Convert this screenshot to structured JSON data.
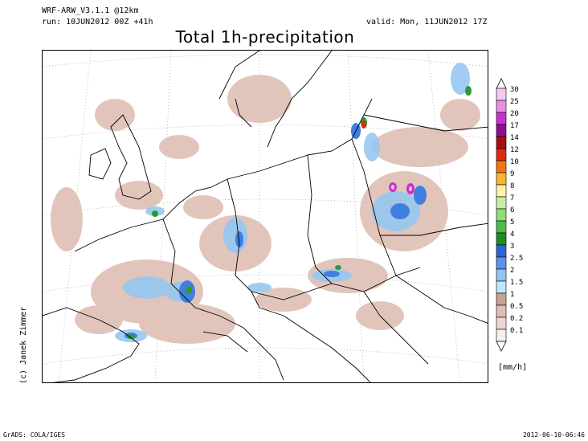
{
  "header": {
    "model": "WRF-ARW_V3.1.1 @12km",
    "run": "run: 10JUN2012 00Z +41h",
    "valid": "valid: Mon, 11JUN2012 17Z",
    "title": "Total 1h-precipitation"
  },
  "copyright": "(c) Janek Zimmer",
  "colorbar": {
    "unit": "[mm/h]",
    "levels": [
      {
        "label": "30",
        "color": "#f5c8f2"
      },
      {
        "label": "25",
        "color": "#ea8fe4"
      },
      {
        "label": "20",
        "color": "#cc2fd0"
      },
      {
        "label": "17",
        "color": "#8e0f94"
      },
      {
        "label": "14",
        "color": "#a50f0f"
      },
      {
        "label": "12",
        "color": "#e02a12"
      },
      {
        "label": "10",
        "color": "#f2760e"
      },
      {
        "label": "9",
        "color": "#f7b52f"
      },
      {
        "label": "8",
        "color": "#fbf2a8"
      },
      {
        "label": "7",
        "color": "#c7eea8"
      },
      {
        "label": "6",
        "color": "#8fdc7a"
      },
      {
        "label": "5",
        "color": "#4cbc48"
      },
      {
        "label": "4",
        "color": "#1c8c24"
      },
      {
        "label": "3",
        "color": "#2f64d6"
      },
      {
        "label": "2.5",
        "color": "#5b92ea"
      },
      {
        "label": "2",
        "color": "#8fc3f3"
      },
      {
        "label": "1.5",
        "color": "#bfe4fb"
      },
      {
        "label": "1",
        "color": "#c9a291"
      },
      {
        "label": "0.5",
        "color": "#ddbeb2"
      },
      {
        "label": "0.2",
        "color": "#ecd8d0"
      },
      {
        "label": "0.1",
        "color": "#f8eeea"
      }
    ]
  },
  "colors": {
    "land_outline": "#000000",
    "grid_line": "#888888",
    "light_rain": "#d9b7aa",
    "moderate_rain": "#8ec4ef",
    "heavy_rain": "#3d7be0",
    "very_heavy_rain": "#2c9a34"
  },
  "footer": {
    "left": "GrADS: COLA/IGES",
    "right": "2012-06-10-06:46"
  }
}
